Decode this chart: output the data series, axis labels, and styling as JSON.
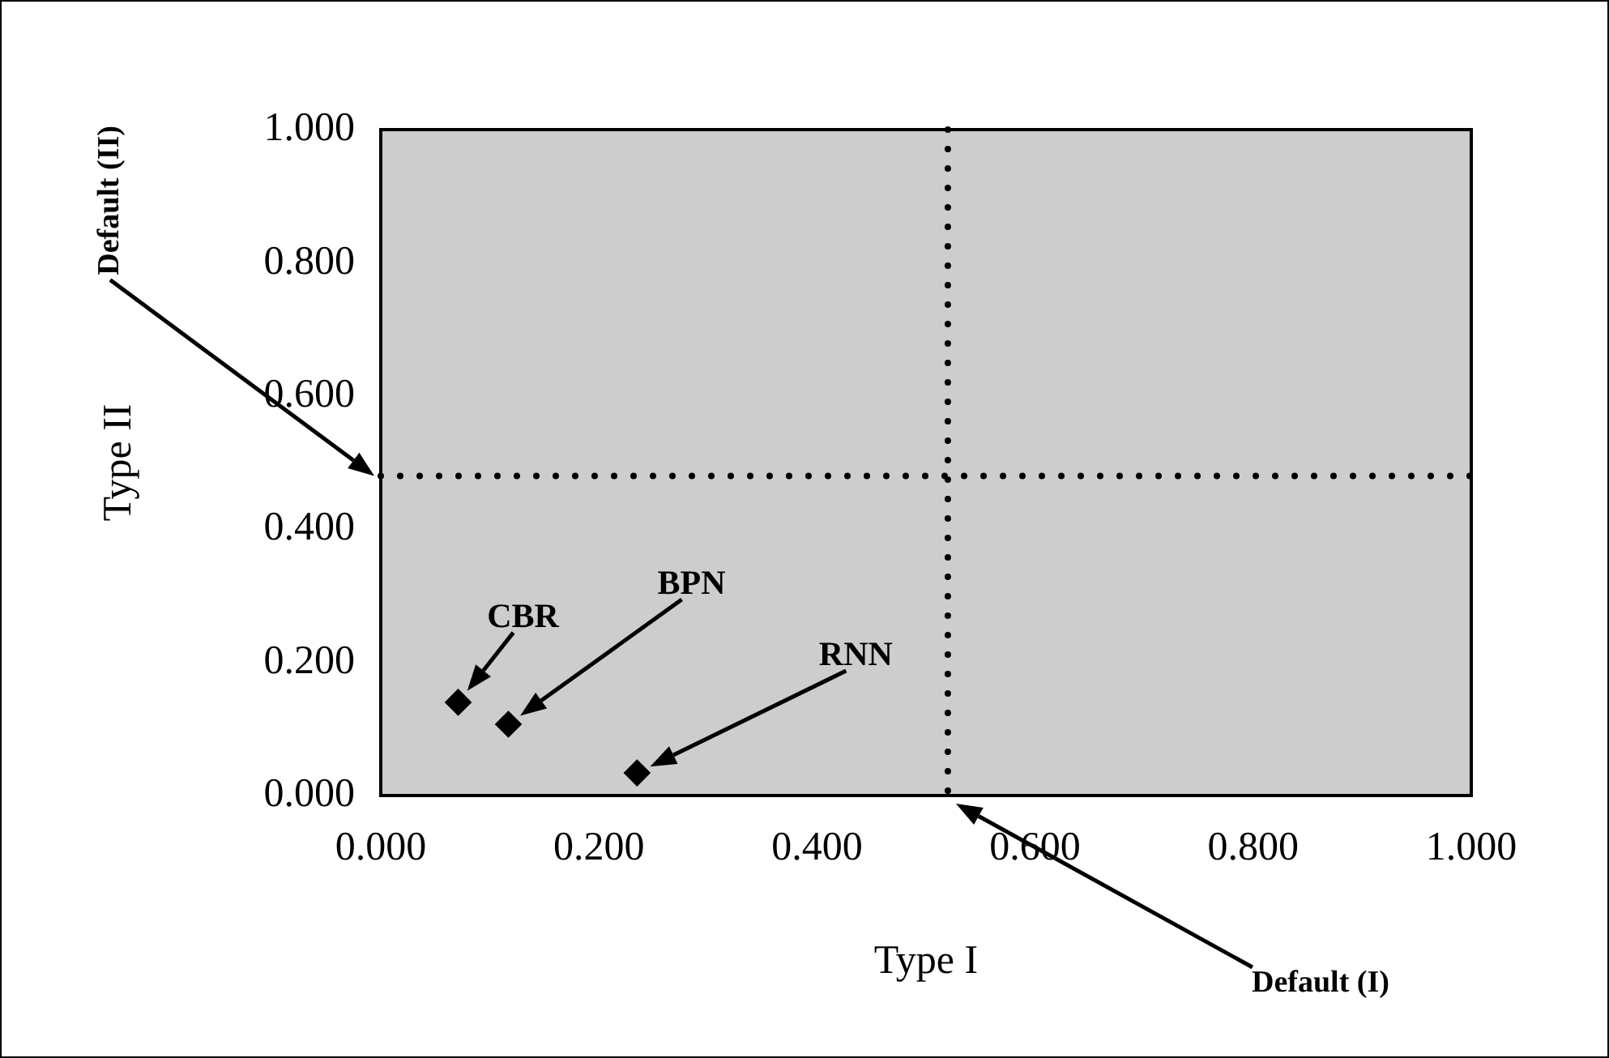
{
  "chart_data": {
    "type": "scatter",
    "xlabel": "Type I",
    "ylabel": "Type II",
    "x": [
      0.071,
      0.117,
      0.235
    ],
    "series": [
      {
        "color": "#000000",
        "values": [
          0.14,
          0.107,
          0.034
        ]
      }
    ],
    "marker": "diamond",
    "legend": false,
    "grid": false,
    "xlim": [
      0,
      1
    ],
    "ylim": [
      0,
      1
    ],
    "xticks": [
      {
        "value": 0,
        "label": "0.000"
      },
      {
        "value": 0.2,
        "label": "0.200"
      },
      {
        "value": 0.4,
        "label": "0.400"
      },
      {
        "value": 0.6,
        "label": "0.600"
      },
      {
        "value": 0.8,
        "label": "0.800"
      },
      {
        "value": 1,
        "label": "1.000"
      }
    ],
    "yticks": [
      {
        "value": 0,
        "label": "0.000"
      },
      {
        "value": 0.2,
        "label": "0.200"
      },
      {
        "value": 0.4,
        "label": "0.400"
      },
      {
        "value": 0.6,
        "label": "0.600"
      },
      {
        "value": 0.8,
        "label": "0.800"
      },
      {
        "value": 1,
        "label": "1.000"
      }
    ],
    "annotations": [
      "CBR",
      "BPN",
      "RNN",
      "Default (I)",
      "Default (II)"
    ],
    "ref_lines": [
      {
        "axis": "x",
        "value": 0.52,
        "line_style": "dotted"
      },
      {
        "axis": "y",
        "value": 0.48,
        "line_style": "dotted"
      }
    ]
  }
}
